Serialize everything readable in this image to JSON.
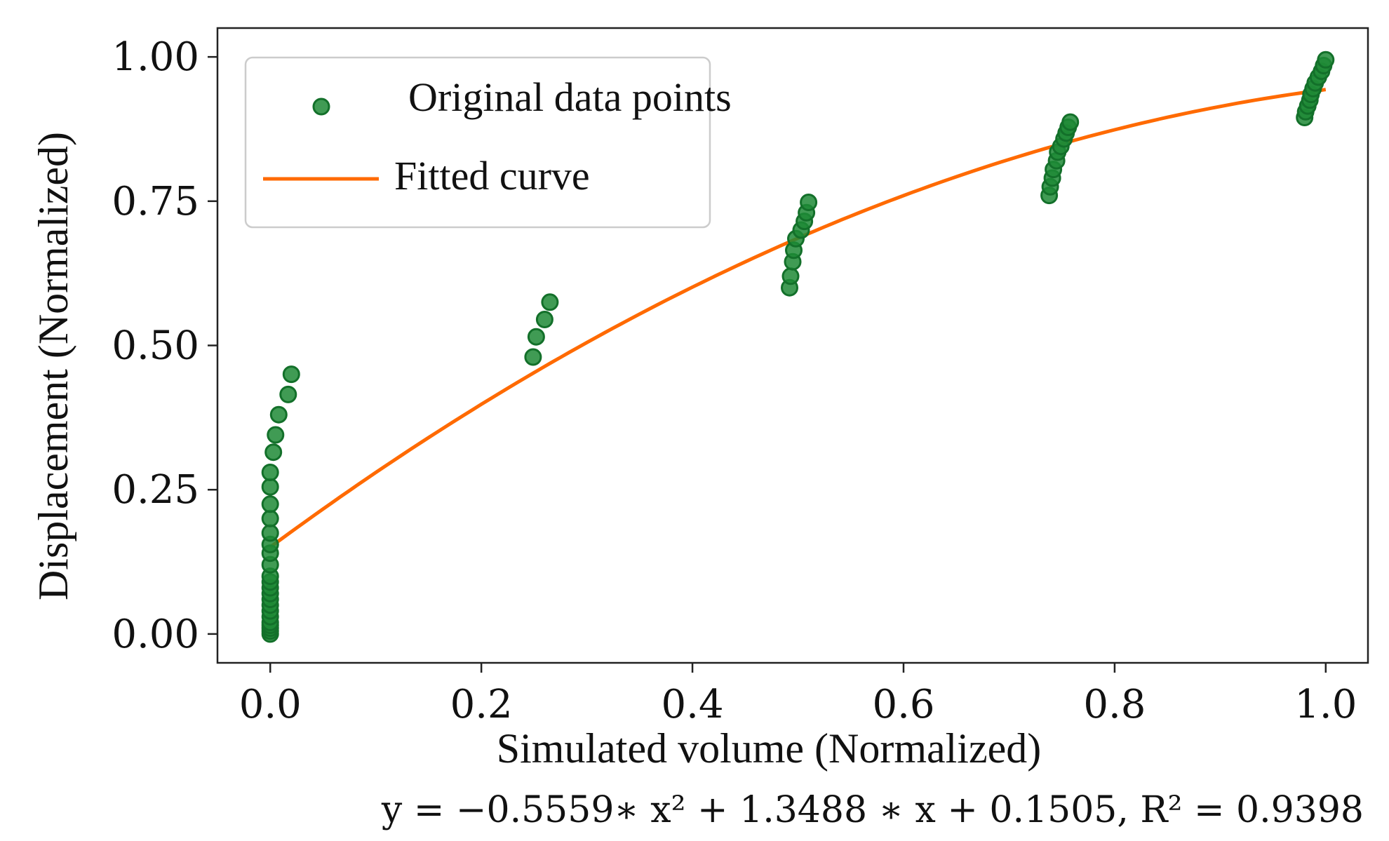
{
  "chart_data": {
    "type": "scatter",
    "title": "",
    "xlabel": "Simulated volume (Normalized)",
    "ylabel": "Displacement (Normalized)",
    "xlim": [
      -0.05,
      1.04
    ],
    "ylim": [
      -0.05,
      1.05
    ],
    "x_ticks": [
      {
        "value": 0.0,
        "label": "0.0"
      },
      {
        "value": 0.2,
        "label": "0.2"
      },
      {
        "value": 0.4,
        "label": "0.4"
      },
      {
        "value": 0.6,
        "label": "0.6"
      },
      {
        "value": 0.8,
        "label": "0.8"
      },
      {
        "value": 1.0,
        "label": "1.0"
      }
    ],
    "y_ticks": [
      {
        "value": 0.0,
        "label": "0.00"
      },
      {
        "value": 0.25,
        "label": "0.25"
      },
      {
        "value": 0.5,
        "label": "0.50"
      },
      {
        "value": 0.75,
        "label": "0.75"
      },
      {
        "value": 1.0,
        "label": "1.00"
      }
    ],
    "grid": false,
    "legend": {
      "placement": "top-left",
      "entries": [
        {
          "label": "Original data points",
          "marker": "circle",
          "color": "#1e8a36"
        },
        {
          "label": "Fitted curve",
          "marker": "line",
          "color": "#ff6a00"
        }
      ]
    },
    "series": [
      {
        "name": "Original data points",
        "kind": "scatter",
        "color": "#1e8a36",
        "edge_color": "#13702a",
        "points": [
          [
            0.0,
            0.0
          ],
          [
            0.0,
            0.005
          ],
          [
            0.0,
            0.01
          ],
          [
            0.0,
            0.015
          ],
          [
            0.0,
            0.02
          ],
          [
            0.0,
            0.03
          ],
          [
            0.0,
            0.04
          ],
          [
            0.0,
            0.05
          ],
          [
            0.0,
            0.06
          ],
          [
            0.0,
            0.07
          ],
          [
            0.0,
            0.08
          ],
          [
            0.0,
            0.09
          ],
          [
            0.0,
            0.1
          ],
          [
            0.0,
            0.12
          ],
          [
            0.0,
            0.14
          ],
          [
            0.0,
            0.155
          ],
          [
            0.0,
            0.175
          ],
          [
            0.0,
            0.2
          ],
          [
            0.0,
            0.225
          ],
          [
            0.0,
            0.255
          ],
          [
            0.0,
            0.28
          ],
          [
            0.003,
            0.315
          ],
          [
            0.005,
            0.345
          ],
          [
            0.008,
            0.38
          ],
          [
            0.017,
            0.415
          ],
          [
            0.02,
            0.45
          ],
          [
            0.249,
            0.48
          ],
          [
            0.252,
            0.515
          ],
          [
            0.26,
            0.545
          ],
          [
            0.265,
            0.575
          ],
          [
            0.492,
            0.6
          ],
          [
            0.493,
            0.62
          ],
          [
            0.495,
            0.645
          ],
          [
            0.496,
            0.665
          ],
          [
            0.498,
            0.685
          ],
          [
            0.503,
            0.7
          ],
          [
            0.506,
            0.715
          ],
          [
            0.508,
            0.73
          ],
          [
            0.51,
            0.748
          ],
          [
            0.738,
            0.76
          ],
          [
            0.739,
            0.775
          ],
          [
            0.741,
            0.79
          ],
          [
            0.742,
            0.805
          ],
          [
            0.745,
            0.82
          ],
          [
            0.746,
            0.835
          ],
          [
            0.749,
            0.845
          ],
          [
            0.752,
            0.858
          ],
          [
            0.754,
            0.868
          ],
          [
            0.756,
            0.878
          ],
          [
            0.758,
            0.887
          ],
          [
            0.98,
            0.895
          ],
          [
            0.981,
            0.905
          ],
          [
            0.983,
            0.915
          ],
          [
            0.985,
            0.925
          ],
          [
            0.986,
            0.935
          ],
          [
            0.988,
            0.945
          ],
          [
            0.99,
            0.955
          ],
          [
            0.993,
            0.965
          ],
          [
            0.996,
            0.975
          ],
          [
            0.998,
            0.985
          ],
          [
            1.0,
            0.995
          ]
        ]
      },
      {
        "name": "Fitted curve",
        "kind": "line",
        "color": "#ff6a00",
        "equation": {
          "a": -0.5559,
          "b": 1.3488,
          "c": 0.1505
        },
        "x_range": [
          0.0,
          1.0
        ]
      }
    ],
    "annotation": "y = −0.5559∗ x² + 1.3488 ∗ x + 0.1505, R² = 0.9398"
  }
}
